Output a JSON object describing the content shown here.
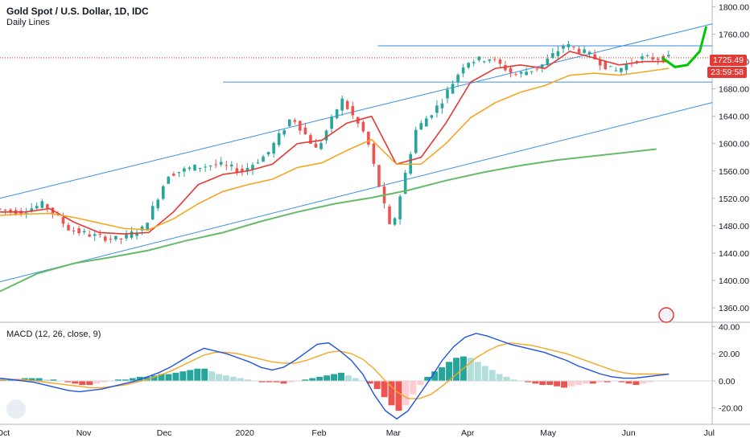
{
  "header": {
    "title": "Gold Spot / U.S. Dollar, 1D, IDC",
    "subtitle": "Daily Lines"
  },
  "macd_label": "MACD (12, 26, close, 9)",
  "price_badge": "1725.49",
  "countdown_badge": "23:59:58",
  "colors": {
    "up": "#26a69a",
    "down": "#ef5350",
    "ema_fast": "#e53935",
    "ema_mid": "#f5a623",
    "ema_slow": "#66bb6a",
    "channel": "#3a8ee6",
    "macd_line": "#1e53e5",
    "signal_line": "#f5a623",
    "forecast": "#00c800"
  },
  "chart_data": [
    {
      "type": "line",
      "y_ticks": [
        "1800.00",
        "1760.00",
        "1720.00",
        "1680.00",
        "1640.00",
        "1600.00",
        "1560.00",
        "1520.00",
        "1480.00",
        "1440.00",
        "1400.00",
        "1360.00"
      ],
      "x_labels": [
        "Oct",
        "Nov",
        "Dec",
        "2020",
        "Feb",
        "Mar",
        "Apr",
        "May",
        "Jun",
        "Jul"
      ],
      "ylim": [
        1340,
        1810
      ],
      "series": [
        {
          "key": "price",
          "x": [
            0,
            8,
            16,
            24,
            32,
            40,
            48,
            56,
            64,
            72,
            80,
            88,
            96,
            104,
            112,
            120,
            128,
            136,
            144,
            152,
            160,
            168,
            176,
            184,
            192,
            200,
            208,
            216
          ],
          "values": [
            1505,
            1500,
            1512,
            1475,
            1465,
            1460,
            1476,
            1555,
            1565,
            1570,
            1560,
            1585,
            1640,
            1590,
            1665,
            1610,
            1470,
            1620,
            1660,
            1720,
            1725,
            1700,
            1712,
            1745,
            1730,
            1705,
            1725,
            1725
          ]
        },
        {
          "key": "ema_fast",
          "x": [
            0,
            8,
            16,
            24,
            32,
            40,
            48,
            56,
            64,
            72,
            80,
            88,
            96,
            104,
            112,
            120,
            128,
            136,
            144,
            152,
            160,
            168,
            176,
            184,
            192,
            200,
            208,
            216
          ],
          "values": [
            1500,
            1500,
            1505,
            1485,
            1470,
            1468,
            1470,
            1500,
            1540,
            1555,
            1560,
            1570,
            1600,
            1605,
            1630,
            1640,
            1570,
            1580,
            1630,
            1690,
            1710,
            1715,
            1710,
            1735,
            1725,
            1715,
            1720,
            1720
          ]
        },
        {
          "key": "ema_mid",
          "x": [
            0,
            8,
            16,
            24,
            32,
            40,
            48,
            56,
            64,
            72,
            80,
            88,
            96,
            104,
            112,
            120,
            128,
            136,
            144,
            152,
            160,
            168,
            176,
            184,
            192,
            200,
            208,
            216
          ],
          "values": [
            1495,
            1497,
            1498,
            1492,
            1484,
            1476,
            1474,
            1490,
            1512,
            1530,
            1540,
            1548,
            1565,
            1572,
            1590,
            1606,
            1570,
            1570,
            1600,
            1638,
            1660,
            1675,
            1685,
            1700,
            1703,
            1700,
            1705,
            1710
          ]
        },
        {
          "key": "ema_slow",
          "x": [
            0,
            12,
            24,
            36,
            48,
            60,
            72,
            84,
            96,
            108,
            120,
            132,
            144,
            156,
            168,
            180,
            192,
            204,
            212
          ],
          "values": [
            1384,
            1410,
            1425,
            1434,
            1444,
            1458,
            1470,
            1486,
            1500,
            1512,
            1521,
            1532,
            1546,
            1558,
            1568,
            1576,
            1582,
            1588,
            1592
          ]
        }
      ],
      "forecast_arrow": {
        "x": [
          214,
          218,
          222,
          226,
          228
        ],
        "values": [
          1725,
          1712,
          1715,
          1735,
          1770
        ]
      }
    },
    {
      "type": "bar",
      "title": "MACD (12, 26, close, 9)",
      "y_ticks": [
        "40.00",
        "20.00",
        "0.00",
        "-20.00"
      ],
      "ylim": [
        -32,
        42
      ],
      "histogram": [
        1,
        1,
        1,
        2,
        2,
        2,
        1,
        1,
        0,
        -1,
        -2,
        -3,
        -3,
        -2,
        -1,
        0,
        1,
        1,
        2,
        3,
        3,
        4,
        5,
        5,
        6,
        7,
        8,
        9,
        9,
        7,
        5,
        4,
        3,
        2,
        1,
        0,
        -1,
        -1,
        -1,
        -2,
        -1,
        0,
        1,
        2,
        3,
        4,
        5,
        6,
        4,
        2,
        0,
        -2,
        -6,
        -12,
        -18,
        -22,
        -18,
        -10,
        -3,
        3,
        7,
        10,
        14,
        17,
        18,
        17,
        14,
        11,
        8,
        5,
        3,
        1,
        0,
        -1,
        -2,
        -3,
        -3,
        -4,
        -5,
        -4,
        -3,
        -2,
        -2,
        -1,
        -1,
        0,
        -1,
        -2,
        -3,
        -2,
        -1,
        0,
        0
      ],
      "macd_line": [
        2,
        1,
        0,
        -1,
        -3,
        -5,
        -7,
        -8,
        -7,
        -6,
        -4,
        -2,
        0,
        3,
        6,
        10,
        15,
        20,
        24,
        22,
        20,
        17,
        14,
        10,
        8,
        10,
        15,
        21,
        27,
        28,
        22,
        15,
        5,
        -10,
        -22,
        -28,
        -22,
        -10,
        2,
        15,
        25,
        32,
        35,
        33,
        30,
        27,
        25,
        23,
        21,
        18,
        15,
        11,
        8,
        5,
        3,
        2,
        2,
        3,
        4,
        5
      ],
      "signal_line": [
        1,
        1,
        1,
        0,
        -1,
        -2,
        -3,
        -4,
        -5,
        -5,
        -4,
        -3,
        -1,
        1,
        4,
        7,
        11,
        15,
        19,
        21,
        21,
        20,
        18,
        16,
        14,
        13,
        13,
        15,
        18,
        21,
        22,
        20,
        16,
        9,
        0,
        -8,
        -13,
        -13,
        -10,
        -4,
        3,
        10,
        17,
        22,
        26,
        28,
        27,
        26,
        24,
        22,
        20,
        17,
        14,
        11,
        8,
        6,
        5,
        5,
        5,
        5
      ]
    }
  ]
}
